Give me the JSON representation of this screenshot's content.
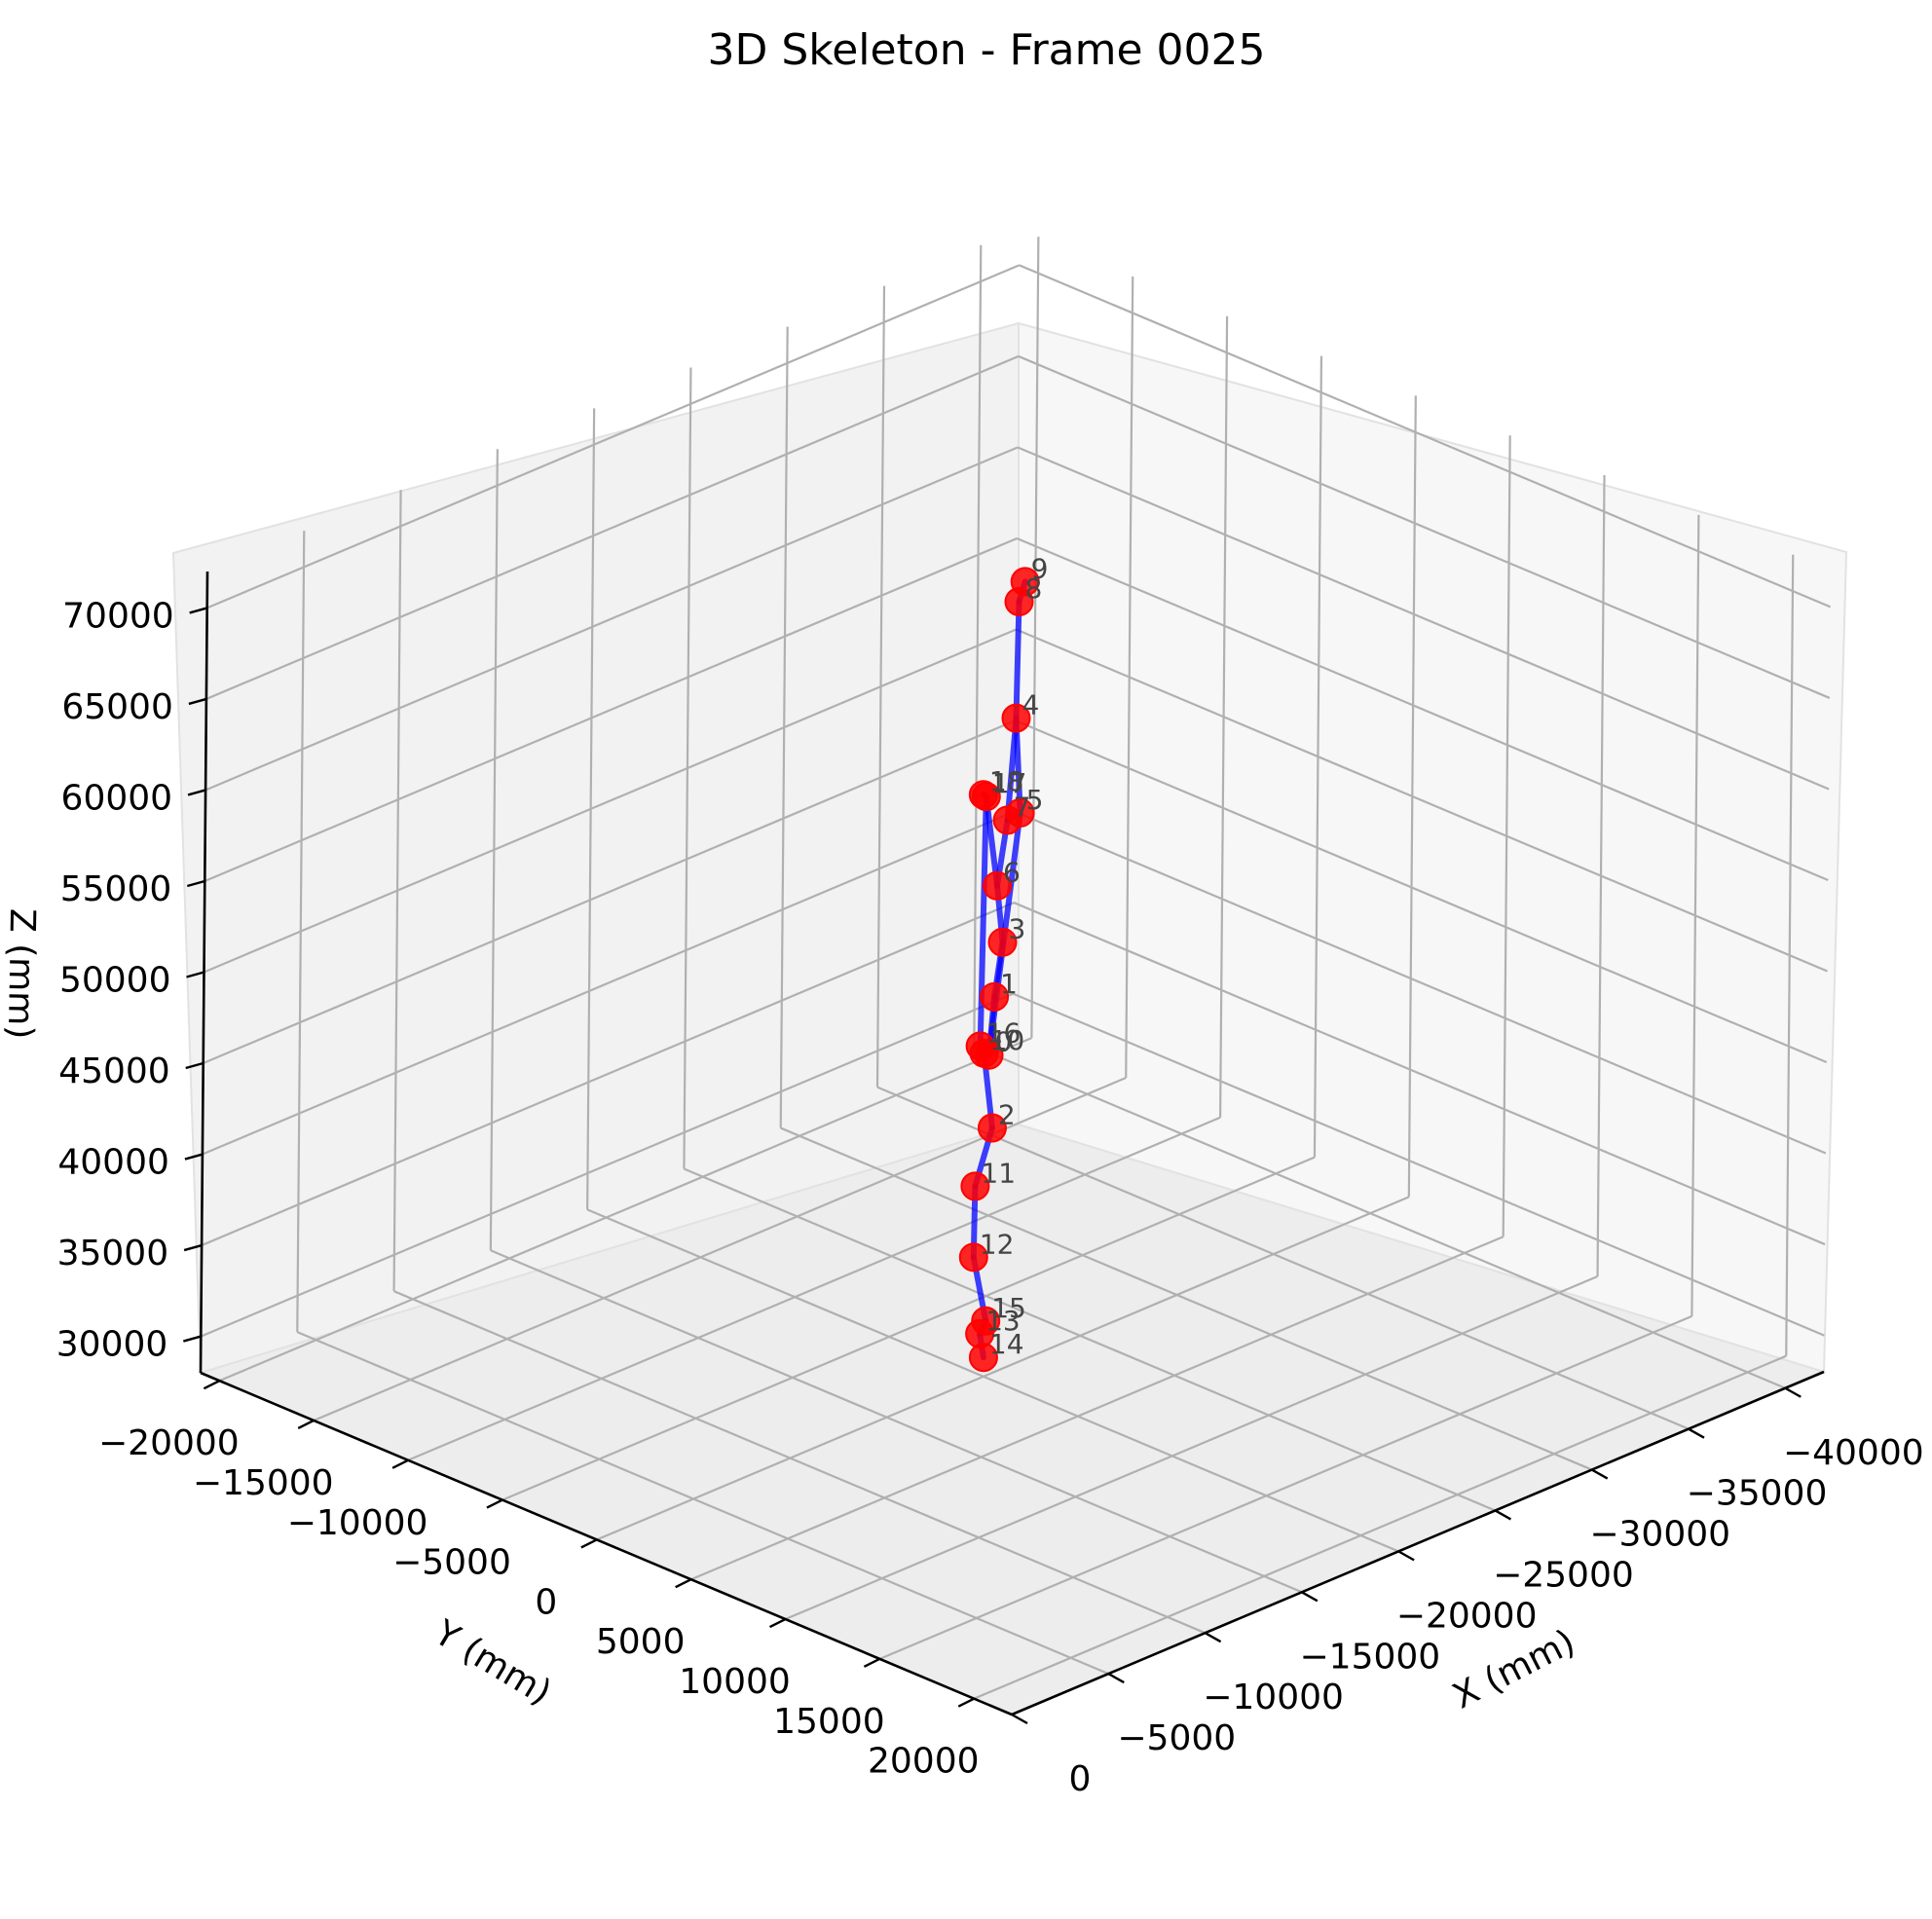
{
  "chart_data": {
    "type": "scatter",
    "title": "3D Skeleton - Frame 0025",
    "xlabel": "X (mm)",
    "ylabel": "Y (mm)",
    "zlabel": "Z (mm)",
    "xlim": [
      -42000,
      0
    ],
    "ylim": [
      -21000,
      22000
    ],
    "zlim": [
      28000,
      72000
    ],
    "xticks": [
      0,
      -5000,
      -10000,
      -15000,
      -20000,
      -25000,
      -30000,
      -35000,
      -40000
    ],
    "xtick_labels": [
      "0",
      "−5000",
      "−10000",
      "−15000",
      "−20000",
      "−25000",
      "−30000",
      "−35000",
      "−40000"
    ],
    "yticks": [
      -20000,
      -15000,
      -10000,
      -5000,
      0,
      5000,
      10000,
      15000,
      20000
    ],
    "ytick_labels": [
      "−20000",
      "−15000",
      "−10000",
      "−5000",
      "0",
      "5000",
      "10000",
      "15000",
      "20000"
    ],
    "zticks": [
      30000,
      35000,
      40000,
      45000,
      50000,
      55000,
      60000,
      65000,
      70000
    ],
    "ztick_labels": [
      "30000",
      "35000",
      "40000",
      "45000",
      "50000",
      "55000",
      "60000",
      "65000",
      "70000"
    ],
    "grid": true,
    "point_color": "#ff0000",
    "bone_color": "#0000ff",
    "joints": [
      {
        "id": "0",
        "x": -21000,
        "y": 0,
        "z": 45200
      },
      {
        "id": "1",
        "x": -21000,
        "y": 0,
        "z": 48400
      },
      {
        "id": "2",
        "x": -21000,
        "y": 0,
        "z": 41200
      },
      {
        "id": "3",
        "x": -21000,
        "y": 0,
        "z": 51400
      },
      {
        "id": "4",
        "x": -21000,
        "y": 0,
        "z": 63700
      },
      {
        "id": "5",
        "x": -21000,
        "y": 0,
        "z": 58500
      },
      {
        "id": "6",
        "x": -21000,
        "y": 0,
        "z": 54500
      },
      {
        "id": "7",
        "x": -21000,
        "y": 0,
        "z": 58100
      },
      {
        "id": "8",
        "x": -21000,
        "y": 0,
        "z": 70100
      },
      {
        "id": "9",
        "x": -21000,
        "y": 0,
        "z": 71200
      },
      {
        "id": "10",
        "x": -21000,
        "y": 0,
        "z": 45300
      },
      {
        "id": "11",
        "x": -21000,
        "y": 0,
        "z": 38000
      },
      {
        "id": "12",
        "x": -21000,
        "y": 0,
        "z": 34100
      },
      {
        "id": "13",
        "x": -21000,
        "y": 0,
        "z": 29900
      },
      {
        "id": "14",
        "x": -21000,
        "y": 0,
        "z": 28600
      },
      {
        "id": "15",
        "x": -21000,
        "y": 0,
        "z": 30600
      },
      {
        "id": "16",
        "x": -21000,
        "y": 0,
        "z": 45700
      },
      {
        "id": "17",
        "x": -21000,
        "y": 0,
        "z": 59400
      },
      {
        "id": "18",
        "x": -21000,
        "y": 0,
        "z": 59500
      }
    ],
    "bones": [
      [
        "9",
        "8"
      ],
      [
        "8",
        "4"
      ],
      [
        "4",
        "5"
      ],
      [
        "4",
        "7"
      ],
      [
        "5",
        "7"
      ],
      [
        "7",
        "6"
      ],
      [
        "6",
        "3"
      ],
      [
        "3",
        "1"
      ],
      [
        "1",
        "0"
      ],
      [
        "0",
        "10"
      ],
      [
        "10",
        "2"
      ],
      [
        "2",
        "11"
      ],
      [
        "11",
        "12"
      ],
      [
        "12",
        "15"
      ],
      [
        "15",
        "13"
      ],
      [
        "13",
        "14"
      ],
      [
        "6",
        "17"
      ],
      [
        "17",
        "18"
      ],
      [
        "17",
        "16"
      ],
      [
        "16",
        "10"
      ],
      [
        "5",
        "0"
      ]
    ]
  }
}
